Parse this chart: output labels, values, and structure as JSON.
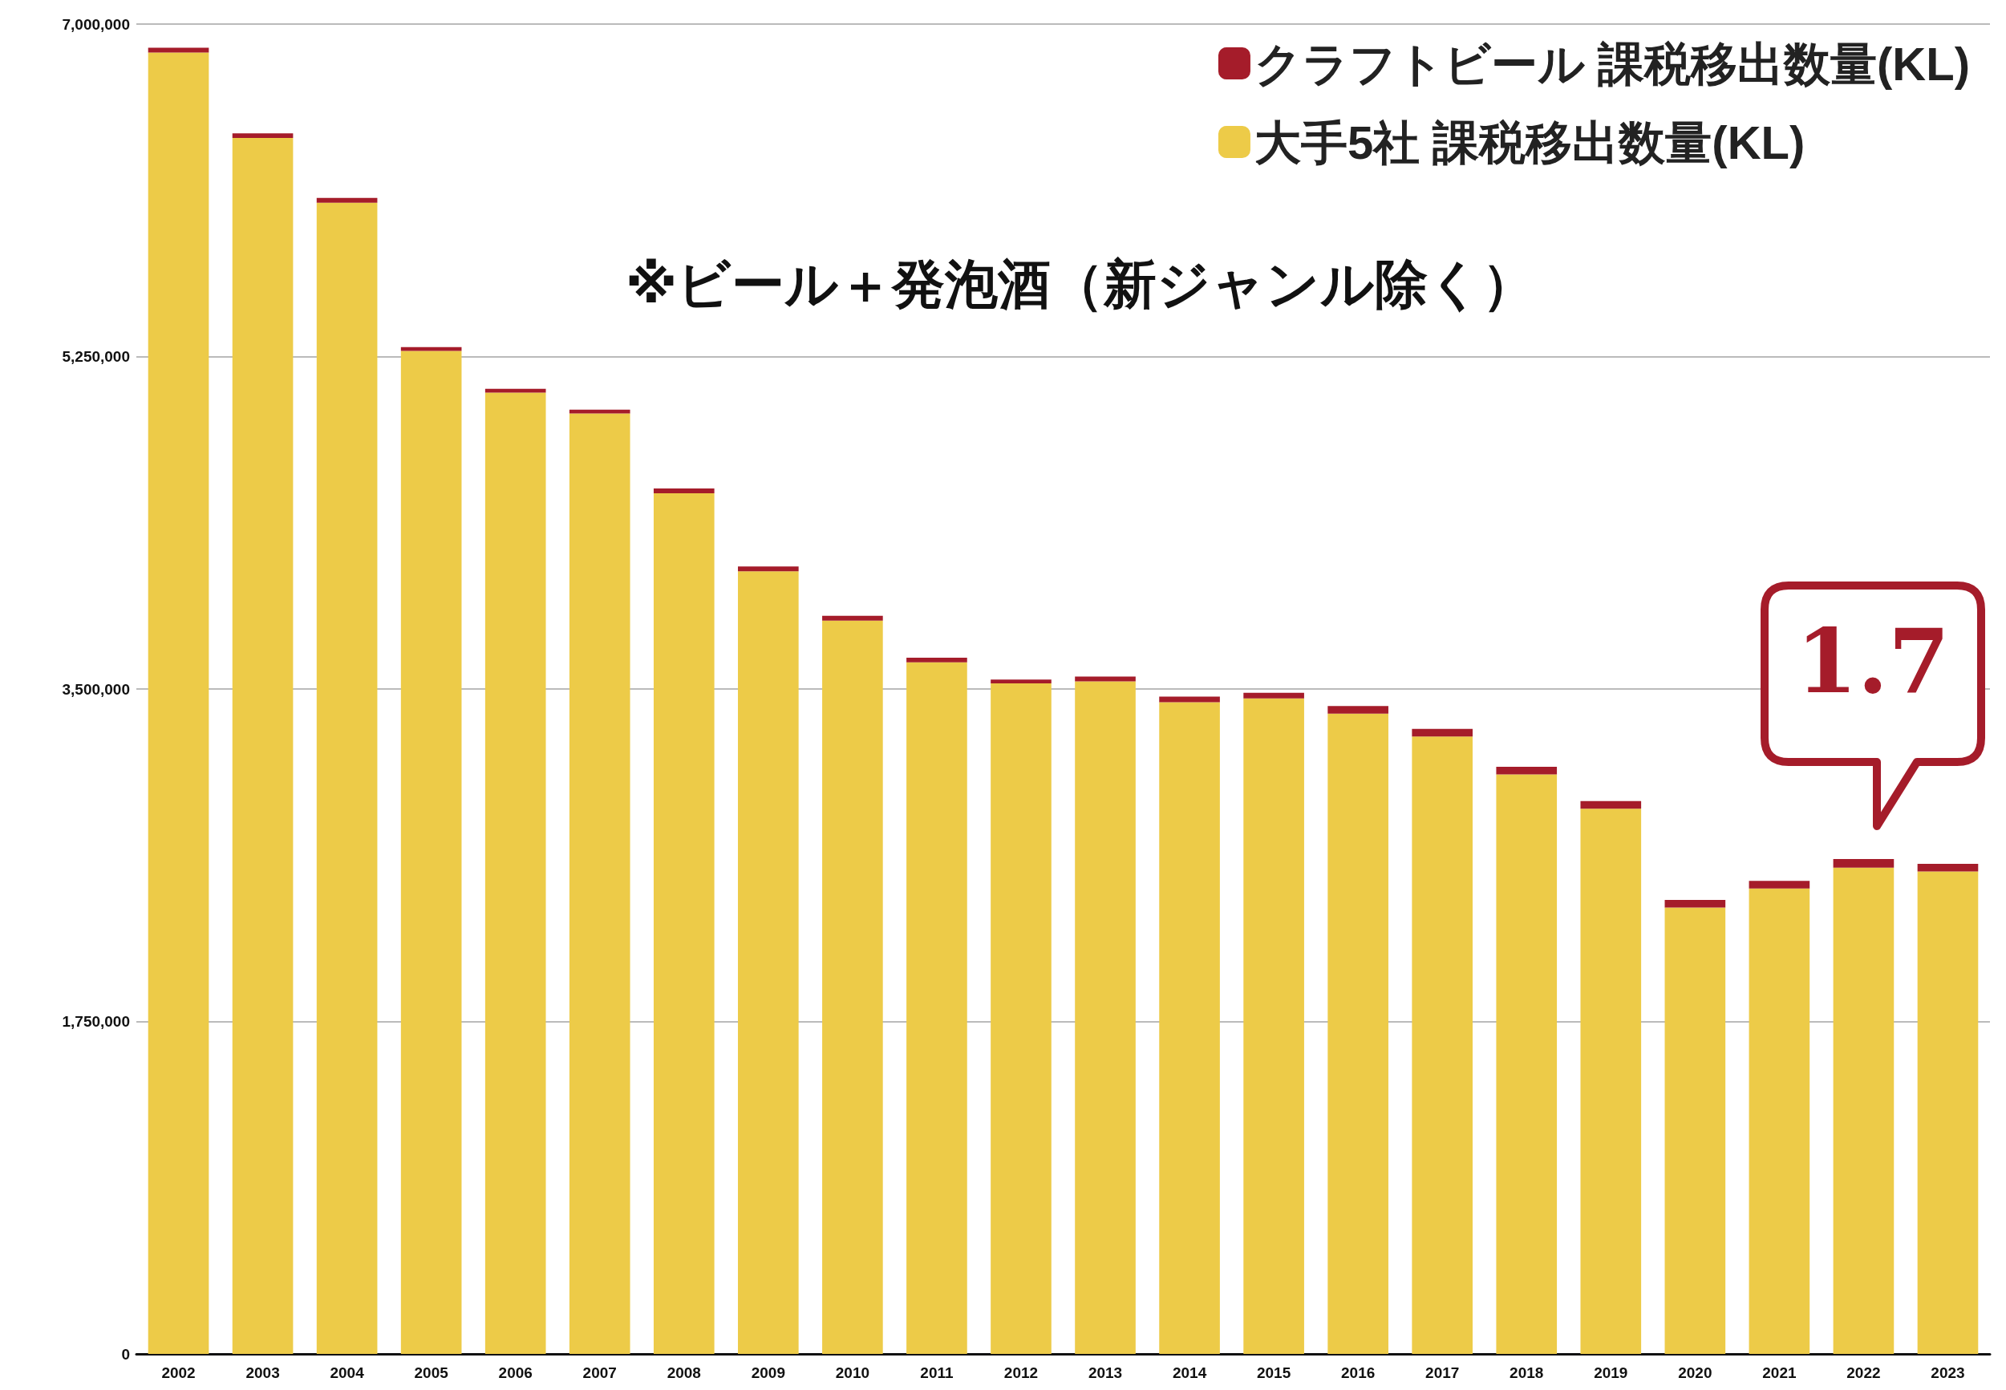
{
  "chart_data": {
    "type": "bar",
    "stacked": true,
    "categories": [
      "2002",
      "2003",
      "2004",
      "2005",
      "2006",
      "2007",
      "2008",
      "2009",
      "2010",
      "2011",
      "2012",
      "2013",
      "2014",
      "2015",
      "2016",
      "2017",
      "2018",
      "2019",
      "2020",
      "2021",
      "2022",
      "2023"
    ],
    "series": [
      {
        "name": "大手5社 課税移出数量(KL)",
        "color": "#edcb48",
        "values": [
          6850000,
          6400000,
          6060000,
          5280000,
          5060000,
          4950000,
          4530000,
          4120000,
          3860000,
          3640000,
          3530000,
          3540000,
          3430000,
          3450000,
          3370000,
          3250000,
          3050000,
          2870000,
          2350000,
          2450000,
          2560000,
          2540000
        ]
      },
      {
        "name": "クラフトビール 課税移出数量(KL)",
        "color": "#a51c2a",
        "values": [
          25000,
          25000,
          25000,
          20000,
          20000,
          20000,
          25000,
          25000,
          25000,
          25000,
          20000,
          25000,
          30000,
          30000,
          40000,
          40000,
          40000,
          40000,
          40000,
          40000,
          45000,
          40000
        ]
      }
    ],
    "ylim": [
      0,
      7000000
    ],
    "yticks": [
      0,
      {
        "value": 1750000,
        "label": "1,750,000"
      },
      {
        "value": 3500000,
        "label": "3,500,000"
      },
      {
        "value": 5250000,
        "label": "5,250,000"
      },
      {
        "value": 7000000,
        "label": "7,000,000"
      }
    ],
    "grid": "y",
    "legend": "top right",
    "annotations": [
      "※ビール＋発泡酒（新ジャンル除く）",
      "1.7"
    ]
  }
}
